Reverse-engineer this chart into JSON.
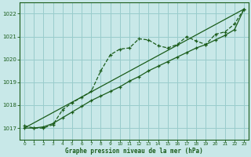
{
  "background_color": "#c8e8e8",
  "plot_bg_color": "#c8e8e8",
  "grid_color": "#99cccc",
  "line_color": "#1a5c1a",
  "title": "Graphe pression niveau de la mer (hPa)",
  "xlim": [
    -0.5,
    23.5
  ],
  "ylim": [
    1016.5,
    1022.5
  ],
  "yticks": [
    1017,
    1018,
    1019,
    1020,
    1021,
    1022
  ],
  "xticks": [
    0,
    1,
    2,
    3,
    4,
    5,
    6,
    7,
    8,
    9,
    10,
    11,
    12,
    13,
    14,
    15,
    16,
    17,
    18,
    19,
    20,
    21,
    22,
    23
  ],
  "series1_x": [
    0,
    1,
    2,
    3,
    4,
    5,
    6,
    7,
    8,
    9,
    10,
    11,
    12,
    13,
    14,
    15,
    16,
    17,
    18,
    19,
    20,
    21,
    22,
    23
  ],
  "series1_y": [
    1017.1,
    1017.0,
    1017.0,
    1017.15,
    1017.8,
    1018.1,
    1018.35,
    1018.6,
    1019.5,
    1020.2,
    1020.45,
    1020.5,
    1020.9,
    1020.85,
    1020.6,
    1020.5,
    1020.65,
    1021.0,
    1020.8,
    1020.65,
    1021.1,
    1021.2,
    1021.55,
    1022.2
  ],
  "series2_x": [
    0,
    1,
    2,
    3,
    4,
    5,
    6,
    7,
    8,
    9,
    10,
    11,
    12,
    13,
    14,
    15,
    16,
    17,
    18,
    19,
    20,
    21,
    22,
    23
  ],
  "series2_y": [
    1017.0,
    1017.0,
    1017.05,
    1017.2,
    1017.45,
    1017.7,
    1017.95,
    1018.2,
    1018.4,
    1018.6,
    1018.8,
    1019.05,
    1019.25,
    1019.5,
    1019.7,
    1019.9,
    1020.1,
    1020.3,
    1020.5,
    1020.65,
    1020.85,
    1021.05,
    1021.3,
    1022.2
  ],
  "series3_x": [
    0,
    23
  ],
  "series3_y": [
    1017.0,
    1022.2
  ]
}
